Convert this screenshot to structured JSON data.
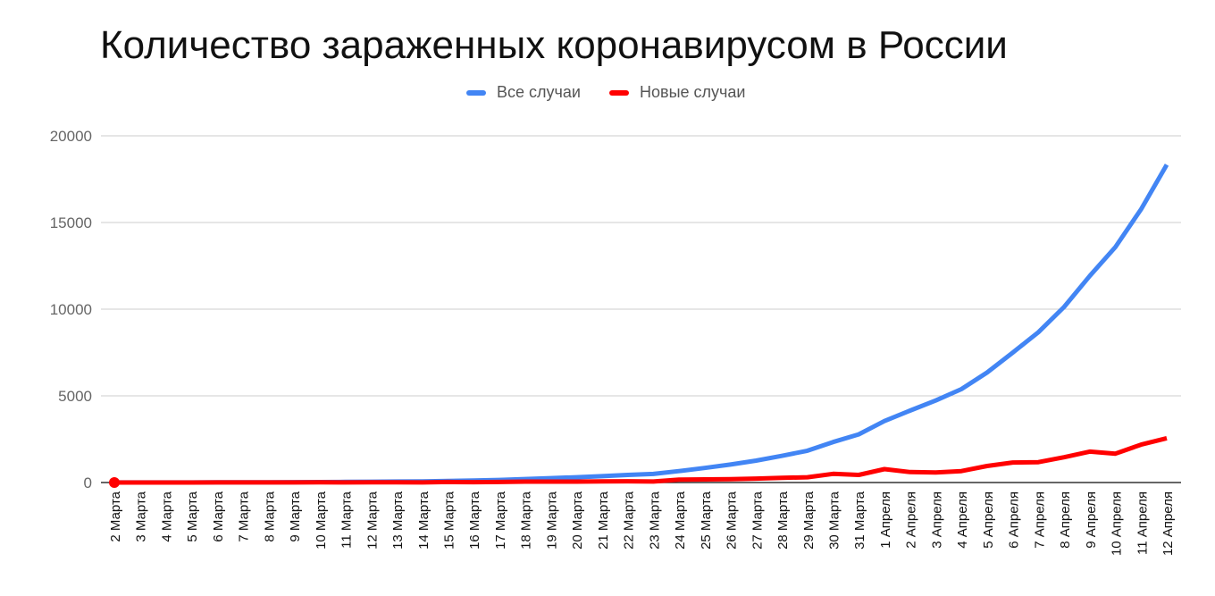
{
  "chart_data": {
    "type": "line",
    "title": "Количество зараженных коронавирусом в России",
    "xlabel": "",
    "ylabel": "",
    "ylim": [
      0,
      20000
    ],
    "yticks": [
      0,
      5000,
      10000,
      15000,
      20000
    ],
    "grid": true,
    "legend_position": "top",
    "categories": [
      "2 Марта",
      "3 Марта",
      "4 Марта",
      "5 Марта",
      "6 Марта",
      "7 Марта",
      "8 Марта",
      "9 Марта",
      "10 Марта",
      "11 Марта",
      "12 Марта",
      "13 Марта",
      "14 Марта",
      "15 Марта",
      "16 Марта",
      "17 Марта",
      "18 Марта",
      "19 Марта",
      "20 Марта",
      "21 Марта",
      "22 Марта",
      "23 Марта",
      "24 Марта",
      "25 Марта",
      "26 Марта",
      "27 Марта",
      "28 Марта",
      "29 Марта",
      "30 Марта",
      "31 Марта",
      "1 Апреля",
      "2 Апреля",
      "3 Апреля",
      "4 Апреля",
      "5 Апреля",
      "6 Апреля",
      "7 Апреля",
      "8 Апреля",
      "9 Апреля",
      "10 Апреля",
      "11 Апреля",
      "12 Апреля"
    ],
    "series": [
      {
        "name": "Все случаи",
        "color": "#4285f4",
        "values": [
          3,
          3,
          3,
          4,
          10,
          14,
          17,
          20,
          28,
          34,
          45,
          59,
          63,
          93,
          114,
          147,
          199,
          253,
          306,
          367,
          438,
          495,
          658,
          840,
          1036,
          1264,
          1534,
          1836,
          2337,
          2777,
          3548,
          4149,
          4731,
          5389,
          6343,
          7497,
          8672,
          10131,
          11917,
          13584,
          15770,
          18328
        ]
      },
      {
        "name": "Новые случаи",
        "color": "#ff0000",
        "values": [
          1,
          0,
          0,
          1,
          6,
          4,
          3,
          3,
          8,
          6,
          11,
          14,
          4,
          30,
          21,
          33,
          52,
          54,
          53,
          61,
          71,
          57,
          163,
          182,
          196,
          228,
          270,
          302,
          501,
          440,
          771,
          601,
          582,
          658,
          954,
          1154,
          1175,
          1459,
          1786,
          1667,
          2186,
          2558
        ]
      }
    ]
  }
}
